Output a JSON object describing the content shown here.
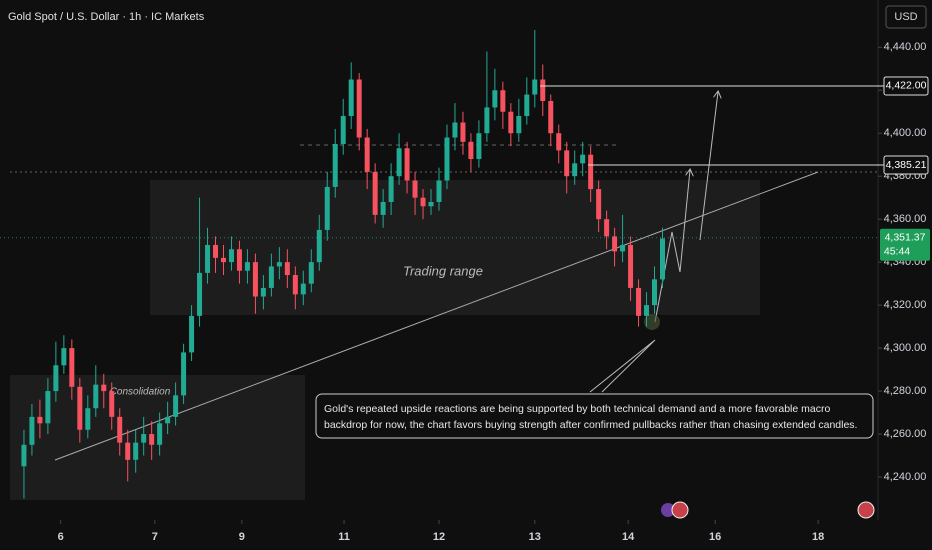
{
  "chart_data": {
    "type": "candlestick",
    "title": "Gold Spot / U.S. Dollar · 1h · IC Markets",
    "currency": "USD",
    "up_color": "#22ab94",
    "down_color": "#f7525f",
    "ylim": [
      4220,
      4462
    ],
    "yticks": [
      {
        "value": 4240,
        "label": "4,240.00"
      },
      {
        "value": 4260,
        "label": "4,260.00"
      },
      {
        "value": 4280,
        "label": "4,280.00"
      },
      {
        "value": 4300,
        "label": "4,300.00"
      },
      {
        "value": 4320,
        "label": "4,320.00"
      },
      {
        "value": 4340,
        "label": "4,340.00"
      },
      {
        "value": 4360,
        "label": "4,360.00"
      },
      {
        "value": 4380,
        "label": "4,380.00"
      },
      {
        "value": 4400,
        "label": "4,400.00"
      },
      {
        "value": 4420,
        "label": "4,420.00"
      },
      {
        "value": 4440,
        "label": "4,440.00"
      }
    ],
    "xlim": [
      0,
      110
    ],
    "xticks": [
      {
        "value": 7.6,
        "label": "6"
      },
      {
        "value": 19.4,
        "label": "7"
      },
      {
        "value": 30.3,
        "label": "9"
      },
      {
        "value": 43.1,
        "label": "11"
      },
      {
        "value": 55,
        "label": "12"
      },
      {
        "value": 67,
        "label": "13"
      },
      {
        "value": 78.7,
        "label": "14"
      },
      {
        "value": 89.6,
        "label": "16"
      },
      {
        "value": 102.5,
        "label": "18"
      }
    ],
    "x": [
      3,
      4,
      5,
      6,
      7,
      8,
      9,
      10,
      11,
      12,
      13,
      14,
      15,
      16,
      17,
      18,
      19,
      20,
      21,
      22,
      23,
      24,
      25,
      26,
      27,
      28,
      29,
      30,
      31,
      32,
      33,
      34,
      35,
      36,
      37,
      38,
      39,
      40,
      41,
      42,
      43,
      44,
      45,
      46,
      47,
      48,
      49,
      50,
      51,
      52,
      53,
      54,
      55,
      56,
      57,
      58,
      59,
      60,
      61,
      62,
      63,
      64,
      65,
      66,
      67,
      68,
      69,
      70,
      71,
      72,
      73,
      74,
      75,
      76,
      77,
      78,
      79,
      80,
      81,
      82,
      83
    ],
    "open": [
      4245,
      4255,
      4268,
      4265,
      4280,
      4292,
      4300,
      4282,
      4262,
      4272,
      4283,
      4280,
      4268,
      4256,
      4248,
      4256,
      4260,
      4255,
      4265,
      4268,
      4278,
      4298,
      4315,
      4335,
      4348,
      4342,
      4340,
      4346,
      4336,
      4340,
      4324,
      4328,
      4338,
      4340,
      4334,
      4325,
      4330,
      4340,
      4355,
      4375,
      4395,
      4408,
      4425,
      4398,
      4382,
      4362,
      4368,
      4380,
      4393,
      4378,
      4370,
      4366,
      4368,
      4378,
      4398,
      4405,
      4396,
      4388,
      4400,
      4412,
      4420,
      4410,
      4400,
      4408,
      4418,
      4425,
      4415,
      4400,
      4392,
      4380,
      4386,
      4390,
      4374,
      4360,
      4352,
      4345,
      4348,
      4328,
      4315,
      4320,
      4332
    ],
    "high": [
      4262,
      4274,
      4276,
      4286,
      4303,
      4306,
      4304,
      4286,
      4278,
      4292,
      4288,
      4284,
      4272,
      4262,
      4262,
      4268,
      4266,
      4270,
      4275,
      4284,
      4302,
      4320,
      4370,
      4356,
      4352,
      4348,
      4352,
      4350,
      4346,
      4344,
      4334,
      4344,
      4347,
      4346,
      4338,
      4336,
      4346,
      4362,
      4382,
      4402,
      4416,
      4433,
      4428,
      4402,
      4386,
      4374,
      4386,
      4400,
      4396,
      4382,
      4374,
      4374,
      4384,
      4404,
      4414,
      4410,
      4400,
      4406,
      4438,
      4430,
      4424,
      4414,
      4416,
      4426,
      4448,
      4432,
      4418,
      4404,
      4396,
      4392,
      4396,
      4394,
      4378,
      4364,
      4356,
      4362,
      4352,
      4332,
      4326,
      4338,
      4356
    ],
    "low": [
      4230,
      4250,
      4258,
      4260,
      4275,
      4288,
      4276,
      4256,
      4258,
      4268,
      4272,
      4262,
      4250,
      4238,
      4242,
      4250,
      4248,
      4250,
      4260,
      4264,
      4274,
      4294,
      4310,
      4330,
      4335,
      4334,
      4336,
      4330,
      4330,
      4316,
      4318,
      4324,
      4332,
      4328,
      4318,
      4320,
      4326,
      4336,
      4350,
      4370,
      4390,
      4402,
      4392,
      4374,
      4358,
      4356,
      4362,
      4376,
      4372,
      4362,
      4360,
      4362,
      4364,
      4374,
      4392,
      4390,
      4382,
      4384,
      4396,
      4406,
      4402,
      4394,
      4396,
      4404,
      4412,
      4408,
      4394,
      4386,
      4372,
      4376,
      4380,
      4368,
      4354,
      4346,
      4338,
      4340,
      4322,
      4310,
      4310,
      4316,
      4328
    ],
    "close": [
      4255,
      4268,
      4265,
      4280,
      4292,
      4300,
      4282,
      4262,
      4272,
      4283,
      4280,
      4268,
      4256,
      4248,
      4256,
      4260,
      4255,
      4265,
      4268,
      4278,
      4298,
      4315,
      4335,
      4348,
      4342,
      4340,
      4346,
      4336,
      4340,
      4324,
      4328,
      4338,
      4340,
      4334,
      4325,
      4330,
      4340,
      4355,
      4375,
      4395,
      4408,
      4425,
      4398,
      4382,
      4362,
      4368,
      4380,
      4393,
      4378,
      4370,
      4366,
      4368,
      4378,
      4398,
      4405,
      4396,
      4388,
      4400,
      4412,
      4420,
      4410,
      4400,
      4408,
      4418,
      4425,
      4415,
      4400,
      4392,
      4380,
      4386,
      4390,
      4374,
      4360,
      4352,
      4345,
      4348,
      4328,
      4315,
      4320,
      4332,
      4351
    ],
    "levels": [
      {
        "value": 4422,
        "label": "4,422.00"
      },
      {
        "value": 4385.21,
        "label": "4,385.21"
      }
    ],
    "last_price": {
      "value": 4351.37,
      "label": "4,351.37",
      "countdown": "45:44"
    },
    "zones": [
      "Trading range",
      "Consolidation"
    ],
    "annotation": [
      "Gold's repeated upside reactions are being supported by both technical demand and a more favorable macro",
      "backdrop for now, the chart favors buying strength after confirmed pullbacks rather than chasing extended candles."
    ]
  }
}
